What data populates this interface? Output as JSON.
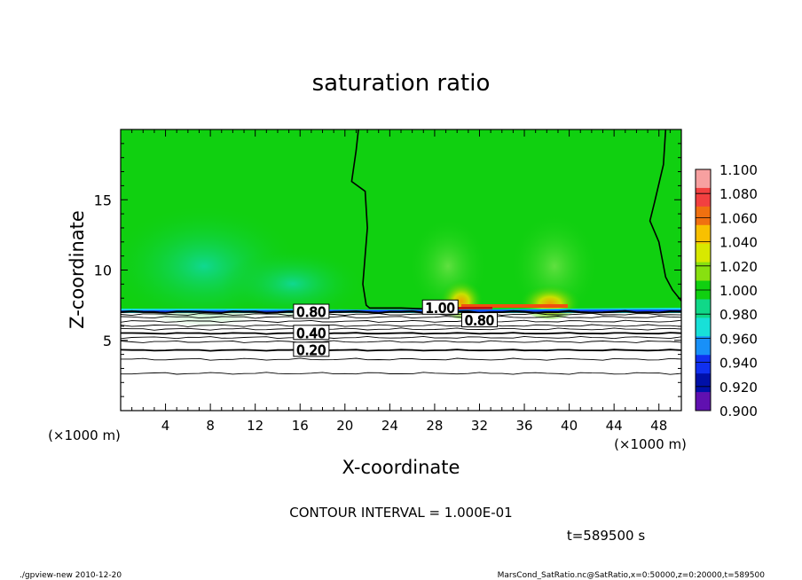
{
  "chart_data": {
    "type": "heatmap",
    "title": "saturation ratio",
    "xlabel": "X-coordinate",
    "ylabel": "Z-coordinate",
    "x_unit": "(×1000 m)",
    "z_unit": "(×1000 m)",
    "xlim": [
      0,
      50
    ],
    "ylim": [
      0,
      20
    ],
    "x_ticks": [
      4,
      8,
      12,
      16,
      20,
      24,
      28,
      32,
      36,
      40,
      44,
      48
    ],
    "y_ticks": [
      5,
      10,
      15
    ],
    "colorbar": {
      "levels": [
        "1.100",
        "1.080",
        "1.060",
        "1.040",
        "1.020",
        "1.000",
        "0.980",
        "0.960",
        "0.940",
        "0.920",
        "0.900"
      ],
      "colors": [
        "#f7a0a0",
        "#f24040",
        "#f07010",
        "#f8c000",
        "#d8e800",
        "#88e010",
        "#10d010",
        "#10d888",
        "#18e0d8",
        "#1890f8",
        "#1030f0",
        "#0010a8",
        "#6010b0"
      ]
    },
    "contour_labels": [
      {
        "text": "0.80",
        "x": 17.0,
        "z": 7.0
      },
      {
        "text": "0.40",
        "x": 17.0,
        "z": 5.5
      },
      {
        "text": "0.20",
        "x": 17.0,
        "z": 4.3
      },
      {
        "text": "1.00",
        "x": 28.5,
        "z": 7.3
      },
      {
        "text": "0.80",
        "x": 32.0,
        "z": 6.4
      }
    ],
    "contour_interval_text": "CONTOUR INTERVAL = 1.000E-01",
    "time_text": "t=589500 s"
  },
  "footer": {
    "left": "./gpview-new  2010-12-20",
    "right": "MarsCond_SatRatio.nc@SatRatio,x=0:50000,z=0:20000,t=589500"
  }
}
